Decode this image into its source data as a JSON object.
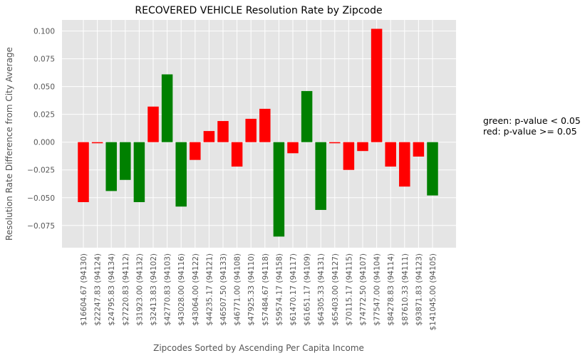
{
  "chart_data": {
    "type": "bar",
    "title": "RECOVERED VEHICLE Resolution Rate by Zipcode",
    "xlabel": "Zipcodes Sorted by Ascending Per Capita Income",
    "ylabel": "Resolution Rate Difference from City Average",
    "ylim": [
      -0.095,
      0.11
    ],
    "yticks": [
      -0.075,
      -0.05,
      -0.025,
      0.0,
      0.025,
      0.05,
      0.075,
      0.1
    ],
    "ytick_labels": [
      "−0.075",
      "−0.050",
      "−0.025",
      "0.000",
      "0.025",
      "0.050",
      "0.075",
      "0.100"
    ],
    "grid": true,
    "categories": [
      "$16604.67 (94130)",
      "$22247.83 (94124)",
      "$24795.83 (94134)",
      "$27220.83 (94112)",
      "$31923.00 (94132)",
      "$32413.83 (94102)",
      "$42770.83 (94103)",
      "$43028.00 (94116)",
      "$43064.00 (94122)",
      "$44235.17 (94121)",
      "$46507.50 (94133)",
      "$46771.00 (94108)",
      "$47925.33 (94110)",
      "$57484.67 (94118)",
      "$59574.17 (94158)",
      "$61470.17 (94117)",
      "$61651.17 (94109)",
      "$64305.33 (94131)",
      "$65403.00 (94127)",
      "$70115.17 (94115)",
      "$74772.50 (94107)",
      "$77547.00 (94104)",
      "$84278.83 (94114)",
      "$87610.33 (94111)",
      "$93871.83 (94123)",
      "$141045.00 (94105)"
    ],
    "values": [
      -0.054,
      -0.001,
      -0.044,
      -0.034,
      -0.054,
      0.032,
      0.061,
      -0.058,
      -0.016,
      0.01,
      0.019,
      -0.022,
      0.021,
      0.03,
      -0.085,
      -0.01,
      0.046,
      -0.061,
      -0.001,
      -0.025,
      -0.008,
      0.102,
      -0.022,
      -0.04,
      -0.013,
      -0.048
    ],
    "significant": [
      false,
      false,
      true,
      true,
      true,
      false,
      true,
      true,
      false,
      false,
      false,
      false,
      false,
      false,
      true,
      false,
      true,
      true,
      false,
      false,
      false,
      false,
      false,
      false,
      false,
      true
    ],
    "colors": {
      "significant": "#008000",
      "not_significant": "#ff0000"
    },
    "annotations": [
      "green: p-value < 0.05",
      "red: p-value >= 0.05"
    ]
  },
  "colors": {
    "plot_bg": "#e5e5e5",
    "grid": "#ffffff",
    "tick_text": "#555555"
  }
}
